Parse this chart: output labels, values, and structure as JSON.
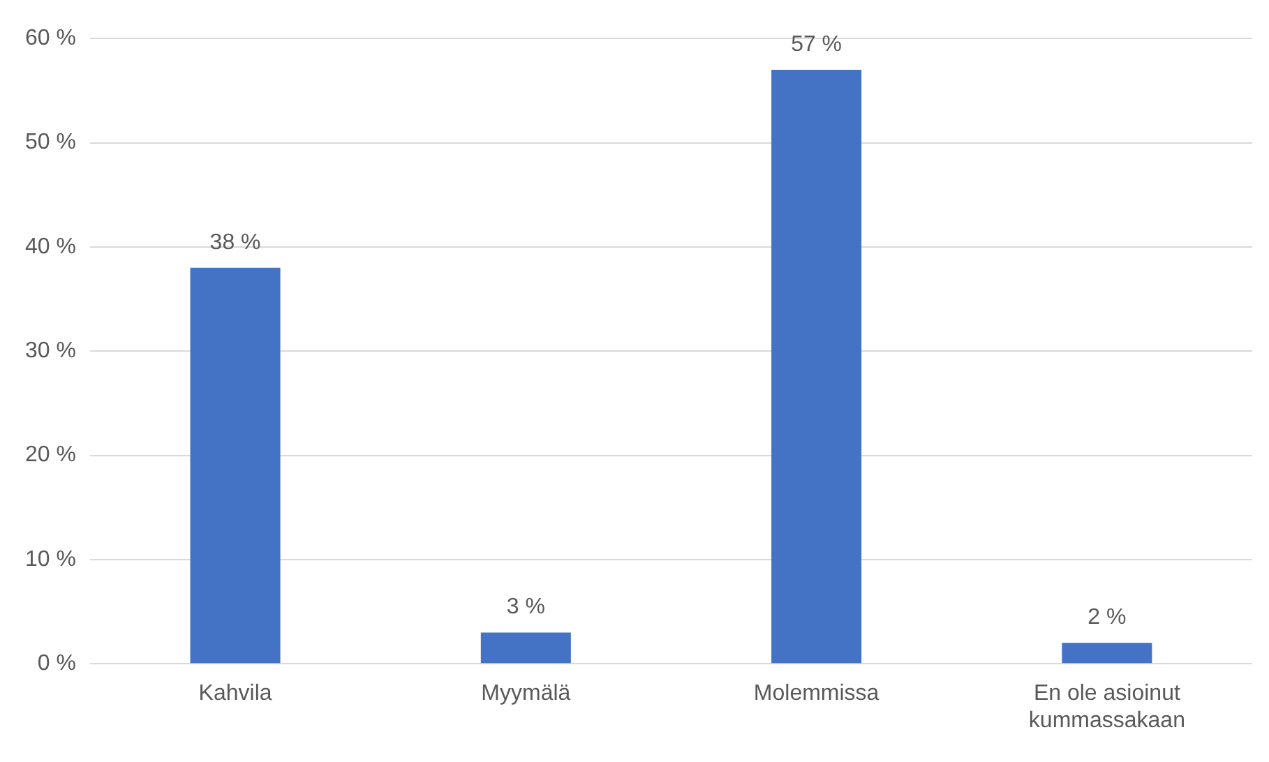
{
  "chart_data": {
    "type": "bar",
    "categories": [
      "Kahvila",
      "Myymälä",
      "Molemmissa",
      "En ole asioinut kummassakaan"
    ],
    "values": [
      38,
      3,
      57,
      2
    ],
    "color": "#4472c4",
    "value_labels": [
      "38 %",
      "3 %",
      "57 %",
      "2 %"
    ],
    "ylim": [
      0,
      60
    ],
    "yticks": [
      {
        "value": 0,
        "label": "0 %"
      },
      {
        "value": 10,
        "label": "10 %"
      },
      {
        "value": 20,
        "label": "20 %"
      },
      {
        "value": 30,
        "label": "30 %"
      },
      {
        "value": 40,
        "label": "40 %"
      },
      {
        "value": 50,
        "label": "50 %"
      },
      {
        "value": 60,
        "label": "60 %"
      }
    ],
    "grid": "y",
    "legend": false
  }
}
